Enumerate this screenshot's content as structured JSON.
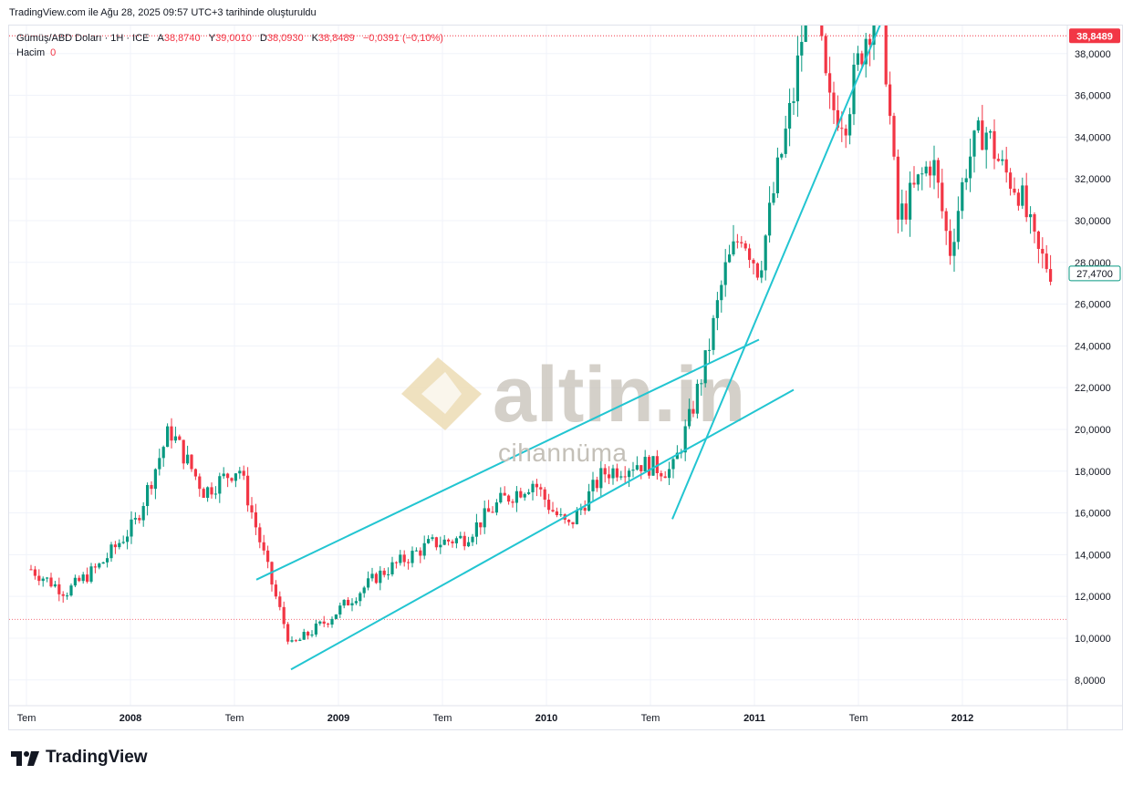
{
  "header": {
    "caption": "TradingView.com ile Ağu 28, 2025 09:57 UTC+3 tarihinde oluşturuldu"
  },
  "legend": {
    "symbol": "Gümüş/ABD Doları · 1H · ICE",
    "o_label": "A",
    "o_value": "38,8740",
    "h_label": "Y",
    "h_value": "39,0010",
    "l_label": "D",
    "l_value": "38,0930",
    "c_label": "K",
    "c_value": "38,8489",
    "change": "−0,0391 (−0,10%)",
    "volume_label": "Hacim",
    "volume_value": "0"
  },
  "price_badges": {
    "last_price": "38,8489",
    "crosshair_price": "27,4700"
  },
  "watermark": {
    "brand": "altin.in",
    "sub": "cihannüma"
  },
  "footer": {
    "brand": "TradingView"
  },
  "colors": {
    "up": "#089981",
    "down": "#f23645",
    "trendline": "#22c5d1",
    "last_price_line": "#f23645",
    "badge_bg": "#f23645",
    "crosshair_border": "#089981"
  },
  "chart_data": {
    "type": "candlestick",
    "x_ticks": [
      "Tem",
      "2008",
      "Tem",
      "2009",
      "Tem",
      "2010",
      "Tem",
      "2011",
      "Tem",
      "2012"
    ],
    "y_ticks": [
      "38,0000",
      "36,0000",
      "34,0000",
      "32,0000",
      "30,0000",
      "28,0000",
      "26,0000",
      "24,0000",
      "22,0000",
      "20,0000",
      "18,0000",
      "16,0000",
      "14,0000",
      "12,0000",
      "10,0000",
      "8,0000"
    ],
    "ylim": [
      7.2,
      39.4
    ],
    "last_price": 38.8489,
    "reference_line": 10.9,
    "anchors": [
      [
        "2007-07",
        13.3
      ],
      [
        "2007-09",
        12.2
      ],
      [
        "2007-11",
        13.5
      ],
      [
        "2008-01",
        15.5
      ],
      [
        "2008-03",
        20.0
      ],
      [
        "2008-05",
        17.0
      ],
      [
        "2008-07",
        18.2
      ],
      [
        "2008-09",
        12.3
      ],
      [
        "2008-10",
        9.6
      ],
      [
        "2008-12",
        10.8
      ],
      [
        "2009-03",
        13.0
      ],
      [
        "2009-06",
        14.5
      ],
      [
        "2009-08",
        14.8
      ],
      [
        "2009-10",
        16.5
      ],
      [
        "2009-12",
        17.5
      ],
      [
        "2010-01",
        16.2
      ],
      [
        "2010-02",
        15.3
      ],
      [
        "2010-04",
        17.9
      ],
      [
        "2010-06",
        18.4
      ],
      [
        "2010-08",
        18.0
      ],
      [
        "2010-09",
        20.5
      ],
      [
        "2010-10",
        23.5
      ],
      [
        "2010-11",
        27.5
      ],
      [
        "2010-12",
        29.5
      ],
      [
        "2011-01",
        27.6
      ],
      [
        "2011-02",
        32.0
      ],
      [
        "2011-03",
        36.0
      ],
      [
        "2011-04",
        42.0
      ],
      [
        "2011-05",
        35.5
      ],
      [
        "2011-06",
        35.0
      ],
      [
        "2011-07",
        38.5
      ],
      [
        "2011-08",
        41.0
      ],
      [
        "2011-09",
        30.0
      ],
      [
        "2011-10",
        31.5
      ],
      [
        "2011-11",
        33.0
      ],
      [
        "2011-12",
        28.5
      ],
      [
        "2012-01",
        32.8
      ],
      [
        "2012-02",
        34.5
      ],
      [
        "2012-03",
        32.5
      ],
      [
        "2012-04",
        31.5
      ],
      [
        "2012-05",
        28.5
      ],
      [
        "2012-06",
        27.5
      ]
    ],
    "trendlines": [
      {
        "from": [
          "2008-08",
          12.8
        ],
        "to": [
          "2011-01",
          24.3
        ]
      },
      {
        "from": [
          "2008-10",
          8.5
        ],
        "to": [
          "2011-03",
          21.9
        ]
      },
      {
        "from": [
          "2010-08",
          15.7
        ],
        "to": [
          "2011-08",
          39.4
        ]
      }
    ]
  }
}
